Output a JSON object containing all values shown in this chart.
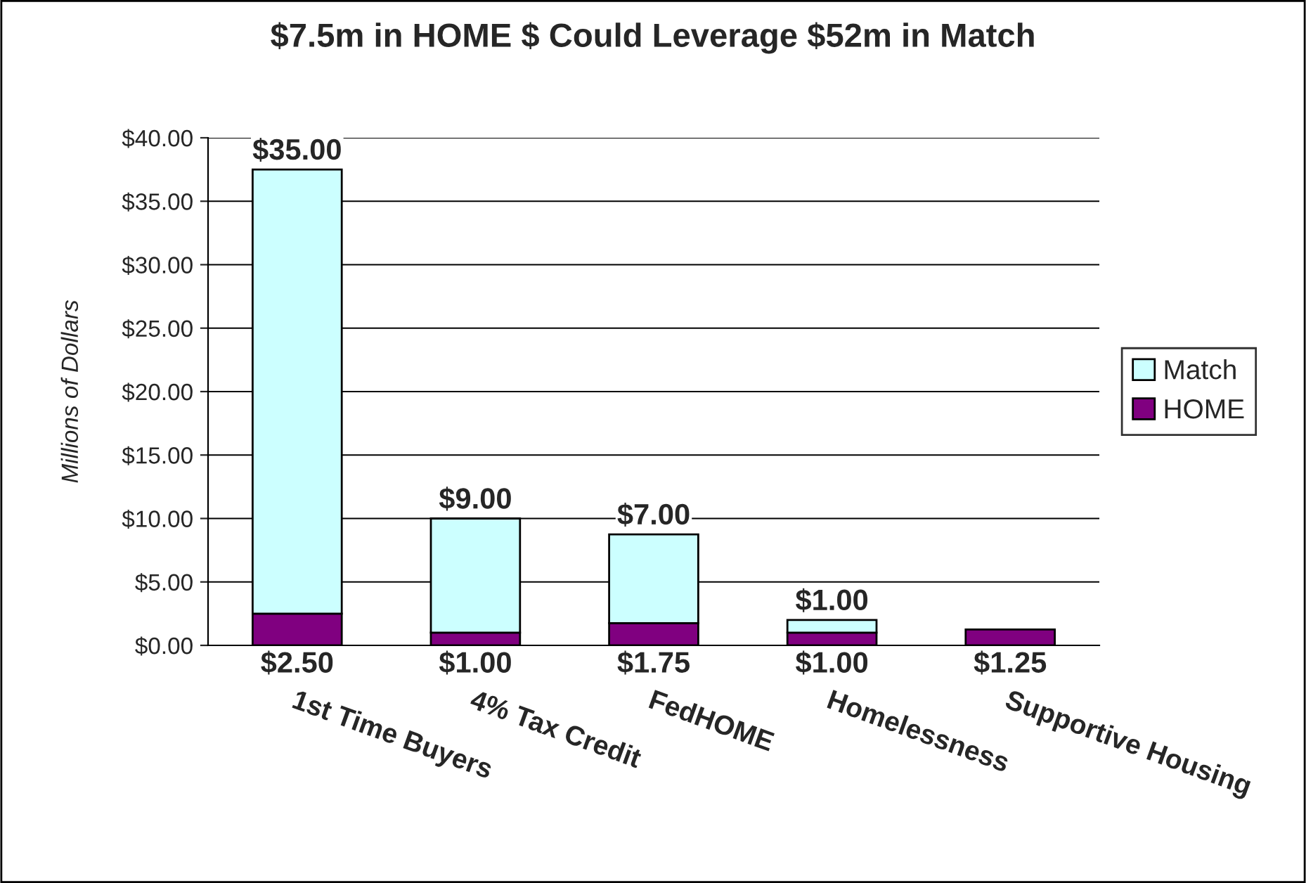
{
  "chart_data": {
    "type": "bar",
    "title": "$7.5m in HOME $ Could Leverage $52m in Match",
    "ylabel": "Millions of Dollars",
    "categories": [
      "1st Time Buyers",
      "4% Tax Credit",
      "FedHOME",
      "Homelessness",
      "Supportive Housing"
    ],
    "stacked": true,
    "series": [
      {
        "name": "HOME",
        "color": "#800080",
        "values": [
          2.5,
          1,
          1.75,
          1,
          1.25
        ],
        "value_labels": [
          "$2.50",
          "$1.00",
          "$1.75",
          "$1.00",
          "$1.25"
        ]
      },
      {
        "name": "Match",
        "color": "#ccffff",
        "values": [
          35,
          9,
          7,
          1,
          null
        ],
        "value_labels": [
          "$35.00",
          "$9.00",
          "$7.00",
          "$1.00",
          null
        ]
      }
    ],
    "ylim": [
      0,
      40
    ],
    "yticks": [
      {
        "value": 0,
        "label": "$0.00"
      },
      {
        "value": 5,
        "label": "$5.00"
      },
      {
        "value": 10,
        "label": "$10.00"
      },
      {
        "value": 15,
        "label": "$15.00"
      },
      {
        "value": 20,
        "label": "$20.00"
      },
      {
        "value": 25,
        "label": "$25.00"
      },
      {
        "value": 30,
        "label": "$30.00"
      },
      {
        "value": 35,
        "label": "$35.00"
      },
      {
        "value": 40,
        "label": "$40.00"
      }
    ],
    "grid": "y",
    "legend": "right"
  }
}
